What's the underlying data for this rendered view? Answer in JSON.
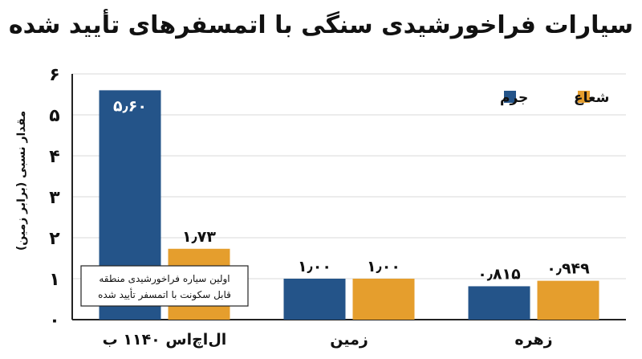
{
  "chart_data": {
    "type": "bar",
    "title": "سیارات فراخورشیدی سنگی با اتمسفرهای تأیید شده",
    "ylabel": "مقدار نسبی (برابر زمین)",
    "xlabel": "",
    "categories": [
      "ال‌اچ‌اس ۱۱۴۰ ب",
      "زمین",
      "زهره"
    ],
    "series": [
      {
        "name": "جرم",
        "color": "#245489",
        "values": [
          5.6,
          1.0,
          0.815
        ],
        "labels": [
          "۵٫۶۰",
          "۱٫۰۰",
          "۰٫۸۱۵"
        ]
      },
      {
        "name": "شعاع",
        "color": "#E59E2D",
        "values": [
          1.73,
          1.0,
          0.949
        ],
        "labels": [
          "۱٫۷۳",
          "۱٫۰۰",
          "۰٫۹۴۹"
        ]
      }
    ],
    "ylim": [
      0,
      6
    ],
    "yticks": [
      0,
      1,
      2,
      3,
      4,
      5,
      6
    ],
    "ytick_labels": [
      "۰",
      "۱",
      "۲",
      "۳",
      "۴",
      "۵",
      "۶"
    ],
    "grid": true,
    "legend_position": "top-right",
    "annotation": {
      "lines": [
        "اولین سیاره فراخورشیدی منطقه",
        "قابل سکونت با اتمسفر تأیید شده"
      ],
      "target_category": "ال‌اچ‌اس ۱۱۴۰ ب"
    }
  }
}
